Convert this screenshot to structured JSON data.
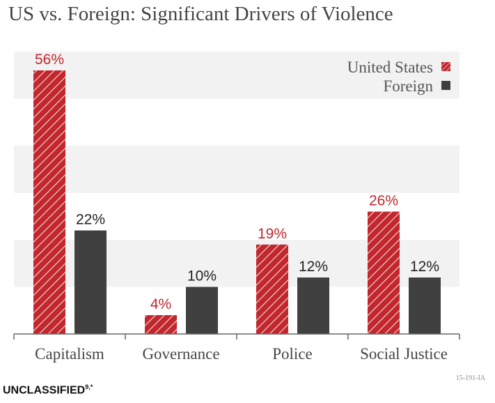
{
  "title": "US vs. Foreign: Significant Drivers of Violence",
  "footer": {
    "code": "15-191-IA",
    "classification": "UNCLASSIFIED",
    "classification_sup": "9,*"
  },
  "chart_data": {
    "type": "bar",
    "title": "US vs. Foreign: Significant Drivers of Violence",
    "categories": [
      "Capitalism",
      "Governance",
      "Police",
      "Social Justice"
    ],
    "series": [
      {
        "name": "United States",
        "values": [
          56,
          4,
          19,
          26
        ],
        "labels": [
          "56%",
          "4%",
          "19%",
          "26%"
        ],
        "color": "#c1272d",
        "pattern": "hatched"
      },
      {
        "name": "Foreign",
        "values": [
          22,
          10,
          12,
          12
        ],
        "labels": [
          "22%",
          "10%",
          "12%",
          "12%"
        ],
        "color": "#404040"
      }
    ],
    "ylim": [
      0,
      60
    ],
    "grid": "alternating bands every 10%",
    "legend": "top-right",
    "xlabel": "",
    "ylabel": ""
  }
}
